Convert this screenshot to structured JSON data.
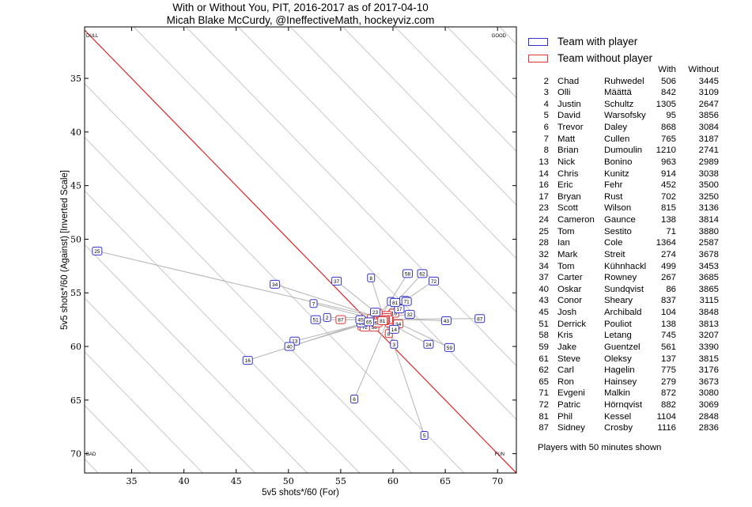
{
  "title_line1": "With or Without You, PIT, 2016-2017 as of 2017-04-10",
  "title_line2": "Micah Blake McCurdy, @IneffectiveMath, hockeyviz.com",
  "note": "Players with 50 minutes shown",
  "legend": {
    "with_label": "Team with player",
    "without_label": "Team without player",
    "with_color": "#3333cc",
    "without_color": "#dd3333"
  },
  "table_headers": {
    "with": "With",
    "without": "Without"
  },
  "players": [
    {
      "num": "2",
      "first": "Chad",
      "last": "Ruhwedel",
      "with": "506",
      "without": "3445"
    },
    {
      "num": "3",
      "first": "Olli",
      "last": "Määttä",
      "with": "842",
      "without": "3109"
    },
    {
      "num": "4",
      "first": "Justin",
      "last": "Schultz",
      "with": "1305",
      "without": "2647"
    },
    {
      "num": "5",
      "first": "David",
      "last": "Warsofsky",
      "with": "95",
      "without": "3856"
    },
    {
      "num": "6",
      "first": "Trevor",
      "last": "Daley",
      "with": "868",
      "without": "3084"
    },
    {
      "num": "7",
      "first": "Matt",
      "last": "Cullen",
      "with": "765",
      "without": "3187"
    },
    {
      "num": "8",
      "first": "Brian",
      "last": "Dumoulin",
      "with": "1210",
      "without": "2741"
    },
    {
      "num": "13",
      "first": "Nick",
      "last": "Bonino",
      "with": "963",
      "without": "2989"
    },
    {
      "num": "14",
      "first": "Chris",
      "last": "Kunitz",
      "with": "914",
      "without": "3038"
    },
    {
      "num": "16",
      "first": "Eric",
      "last": "Fehr",
      "with": "452",
      "without": "3500"
    },
    {
      "num": "17",
      "first": "Bryan",
      "last": "Rust",
      "with": "702",
      "without": "3250"
    },
    {
      "num": "23",
      "first": "Scott",
      "last": "Wilson",
      "with": "815",
      "without": "3136"
    },
    {
      "num": "24",
      "first": "Cameron",
      "last": "Gaunce",
      "with": "138",
      "without": "3814"
    },
    {
      "num": "25",
      "first": "Tom",
      "last": "Sestito",
      "with": "71",
      "without": "3880"
    },
    {
      "num": "28",
      "first": "Ian",
      "last": "Cole",
      "with": "1364",
      "without": "2587"
    },
    {
      "num": "32",
      "first": "Mark",
      "last": "Streit",
      "with": "274",
      "without": "3678"
    },
    {
      "num": "34",
      "first": "Tom",
      "last": "Kühnhackl",
      "with": "499",
      "without": "3453"
    },
    {
      "num": "37",
      "first": "Carter",
      "last": "Rowney",
      "with": "267",
      "without": "3685"
    },
    {
      "num": "40",
      "first": "Oskar",
      "last": "Sundqvist",
      "with": "86",
      "without": "3865"
    },
    {
      "num": "43",
      "first": "Conor",
      "last": "Sheary",
      "with": "837",
      "without": "3115"
    },
    {
      "num": "45",
      "first": "Josh",
      "last": "Archibald",
      "with": "104",
      "without": "3848"
    },
    {
      "num": "51",
      "first": "Derrick",
      "last": "Pouliot",
      "with": "138",
      "without": "3813"
    },
    {
      "num": "58",
      "first": "Kris",
      "last": "Letang",
      "with": "745",
      "without": "3207"
    },
    {
      "num": "59",
      "first": "Jake",
      "last": "Guentzel",
      "with": "561",
      "without": "3390"
    },
    {
      "num": "61",
      "first": "Steve",
      "last": "Oleksy",
      "with": "137",
      "without": "3815"
    },
    {
      "num": "62",
      "first": "Carl",
      "last": "Hagelin",
      "with": "775",
      "without": "3176"
    },
    {
      "num": "65",
      "first": "Ron",
      "last": "Hainsey",
      "with": "279",
      "without": "3673"
    },
    {
      "num": "71",
      "first": "Evgeni",
      "last": "Malkin",
      "with": "872",
      "without": "3080"
    },
    {
      "num": "72",
      "first": "Patric",
      "last": "Hörnqvist",
      "with": "882",
      "without": "3069"
    },
    {
      "num": "81",
      "first": "Phil",
      "last": "Kessel",
      "with": "1104",
      "without": "2848"
    },
    {
      "num": "87",
      "first": "Sidney",
      "last": "Crosby",
      "with": "1116",
      "without": "2836"
    }
  ],
  "chart_data": {
    "type": "scatter",
    "xlabel": "5v5 shots*/60 (For)",
    "ylabel": "5v5 shots*/60 (Against) [Inverted Scale]",
    "xlim": [
      30.5,
      71.8
    ],
    "ylim": [
      30.2,
      71.8
    ],
    "y_inverted": true,
    "xticks": [
      35,
      40,
      45,
      50,
      55,
      60,
      65,
      70
    ],
    "yticks": [
      35,
      40,
      45,
      50,
      55,
      60,
      65,
      70
    ],
    "corner_labels": {
      "top_left": "DULL",
      "top_right": "GOOD",
      "bottom_left": "BAD",
      "bottom_right": "FUN"
    },
    "grid_diagonals": "x - y = constant",
    "break_even_line": "x = y",
    "series": [
      {
        "name": "Team with player",
        "points": [
          {
            "label": "2",
            "x": 53.7,
            "y": 57.3
          },
          {
            "label": "3",
            "x": 60.1,
            "y": 59.8
          },
          {
            "label": "4",
            "x": 59.8,
            "y": 55.8
          },
          {
            "label": "5",
            "x": 63.0,
            "y": 68.3
          },
          {
            "label": "6",
            "x": 56.3,
            "y": 64.9
          },
          {
            "label": "7",
            "x": 52.4,
            "y": 56.0
          },
          {
            "label": "8",
            "x": 57.9,
            "y": 53.6
          },
          {
            "label": "13",
            "x": 50.6,
            "y": 59.5
          },
          {
            "label": "14",
            "x": 60.1,
            "y": 58.4
          },
          {
            "label": "16",
            "x": 46.1,
            "y": 61.3
          },
          {
            "label": "17",
            "x": 60.6,
            "y": 56.5
          },
          {
            "label": "23",
            "x": 58.3,
            "y": 56.8
          },
          {
            "label": "24",
            "x": 63.4,
            "y": 59.8
          },
          {
            "label": "25",
            "x": 31.7,
            "y": 51.1
          },
          {
            "label": "28",
            "x": 57.0,
            "y": 57.8
          },
          {
            "label": "32",
            "x": 61.6,
            "y": 57.0
          },
          {
            "label": "34",
            "x": 48.7,
            "y": 54.2
          },
          {
            "label": "37",
            "x": 54.6,
            "y": 53.9
          },
          {
            "label": "40",
            "x": 50.1,
            "y": 60.0
          },
          {
            "label": "43",
            "x": 65.1,
            "y": 57.6
          },
          {
            "label": "45",
            "x": 56.9,
            "y": 57.5
          },
          {
            "label": "51",
            "x": 52.6,
            "y": 57.5
          },
          {
            "label": "58",
            "x": 61.4,
            "y": 53.2
          },
          {
            "label": "59",
            "x": 65.4,
            "y": 60.1
          },
          {
            "label": "61",
            "x": 61.1,
            "y": 55.7
          },
          {
            "label": "62",
            "x": 62.8,
            "y": 53.2
          },
          {
            "label": "65",
            "x": 57.7,
            "y": 57.7
          },
          {
            "label": "71",
            "x": 61.3,
            "y": 55.8
          },
          {
            "label": "72",
            "x": 63.9,
            "y": 53.9
          },
          {
            "label": "81",
            "x": 60.2,
            "y": 55.9
          },
          {
            "label": "87",
            "x": 68.3,
            "y": 57.4
          }
        ]
      },
      {
        "name": "Team without player",
        "points": [
          {
            "label": "2",
            "x": 59.1,
            "y": 57.3
          },
          {
            "label": "3",
            "x": 59.7,
            "y": 57.8
          },
          {
            "label": "4",
            "x": 57.6,
            "y": 58.0
          },
          {
            "label": "5",
            "x": 59.3,
            "y": 57.6
          },
          {
            "label": "6",
            "x": 59.7,
            "y": 57.1
          },
          {
            "label": "7",
            "x": 59.6,
            "y": 57.8
          },
          {
            "label": "8",
            "x": 59.6,
            "y": 58.8
          },
          {
            "label": "13",
            "x": 59.5,
            "y": 57.3
          },
          {
            "label": "14",
            "x": 58.7,
            "y": 57.3
          },
          {
            "label": "16",
            "x": 60.1,
            "y": 56.9
          },
          {
            "label": "17",
            "x": 58.8,
            "y": 57.4
          },
          {
            "label": "23",
            "x": 58.9,
            "y": 57.5
          },
          {
            "label": "24",
            "x": 59.2,
            "y": 57.6
          },
          {
            "label": "25",
            "x": 59.5,
            "y": 57.5
          },
          {
            "label": "28",
            "x": 59.4,
            "y": 57.1
          },
          {
            "label": "32",
            "x": 59.2,
            "y": 57.3
          },
          {
            "label": "34",
            "x": 60.5,
            "y": 57.9
          },
          {
            "label": "37",
            "x": 59.2,
            "y": 57.5
          },
          {
            "label": "40",
            "x": 59.4,
            "y": 57.3
          },
          {
            "label": "43",
            "x": 58.0,
            "y": 57.4
          },
          {
            "label": "45",
            "x": 59.2,
            "y": 57.5
          },
          {
            "label": "51",
            "x": 59.5,
            "y": 57.5
          },
          {
            "label": "58",
            "x": 58.2,
            "y": 58.2
          },
          {
            "label": "59",
            "x": 58.5,
            "y": 56.9
          },
          {
            "label": "61",
            "x": 59.2,
            "y": 57.5
          },
          {
            "label": "62",
            "x": 58.5,
            "y": 57.8
          },
          {
            "label": "65",
            "x": 59.1,
            "y": 57.5
          },
          {
            "label": "71",
            "x": 57.1,
            "y": 58.1
          },
          {
            "label": "72",
            "x": 57.3,
            "y": 58.2
          },
          {
            "label": "81",
            "x": 59.0,
            "y": 57.6
          },
          {
            "label": "87",
            "x": 55.0,
            "y": 57.5
          }
        ]
      }
    ]
  }
}
